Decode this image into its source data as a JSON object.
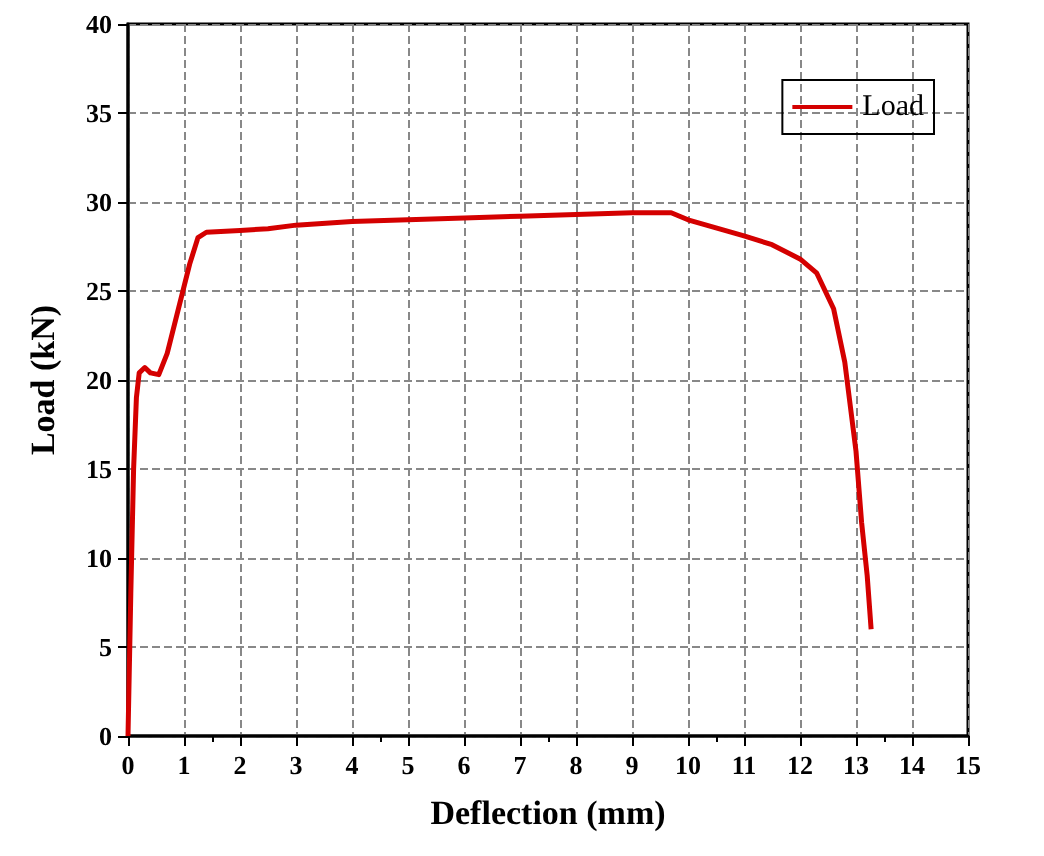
{
  "chart_data": {
    "type": "line",
    "xlabel": "Deflection (mm)",
    "ylabel": "Load (kN)",
    "xlim": [
      0,
      15
    ],
    "xticks": [
      0,
      1,
      2,
      3,
      4,
      5,
      6,
      7,
      8,
      9,
      10,
      11,
      12,
      13,
      14,
      15
    ],
    "ylim": [
      0,
      40
    ],
    "yticks": [
      0,
      5,
      10,
      15,
      20,
      25,
      30,
      35,
      40
    ],
    "grid": true,
    "legend": "top right",
    "marker": "none",
    "line_style": "solid",
    "x": [
      0,
      0.05,
      0.1,
      0.15,
      0.2,
      0.3,
      0.4,
      0.55,
      0.7,
      0.9,
      1.1,
      1.25,
      1.4,
      2,
      2.5,
      3,
      4,
      5,
      6,
      7,
      8,
      9,
      9.7,
      9.85,
      10,
      11,
      11.5,
      12,
      12.3,
      12.6,
      12.8,
      13,
      13.1,
      13.2,
      13.27
    ],
    "series": [
      {
        "name": "Load",
        "color": "#d40000",
        "values": [
          0,
          8,
          15,
          19,
          20.4,
          20.7,
          20.4,
          20.3,
          21.5,
          24,
          26.5,
          28,
          28.3,
          28.4,
          28.5,
          28.7,
          28.9,
          29,
          29.1,
          29.2,
          29.3,
          29.4,
          29.4,
          29.2,
          29,
          28.1,
          27.6,
          26.8,
          26,
          24,
          21,
          16,
          12,
          9,
          6
        ]
      }
    ]
  }
}
